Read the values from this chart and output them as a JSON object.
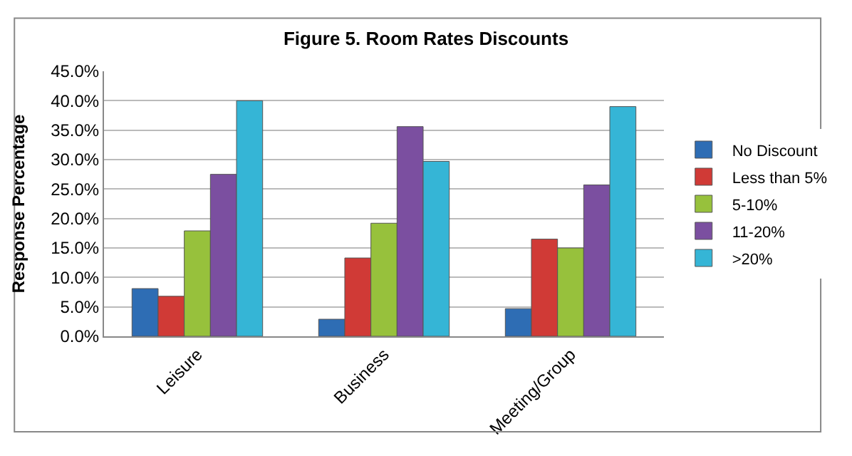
{
  "chart_data": {
    "type": "bar",
    "title": "Figure 5. Room Rates Discounts",
    "ylabel": "Response Percentage",
    "categories": [
      "Leisure",
      "Business",
      "Meeting/Group"
    ],
    "series": [
      {
        "name": "No Discount",
        "color": "#2e6db4",
        "values": [
          8.1,
          2.9,
          4.7
        ]
      },
      {
        "name": "Less than 5%",
        "color": "#d03a36",
        "values": [
          6.8,
          13.3,
          16.5
        ]
      },
      {
        "name": "5-10%",
        "color": "#97c13c",
        "values": [
          17.9,
          19.2,
          15.0
        ]
      },
      {
        "name": "11-20%",
        "color": "#7b4fa0",
        "values": [
          27.5,
          35.6,
          25.7
        ]
      },
      {
        "name": ">20%",
        "color": "#35b5d6",
        "values": [
          40.0,
          29.7,
          39.0
        ]
      }
    ],
    "ylim": [
      0,
      45
    ],
    "yticks": [
      {
        "value": 0,
        "label": "0.0%"
      },
      {
        "value": 5,
        "label": "5.0%"
      },
      {
        "value": 10,
        "label": "10.0%"
      },
      {
        "value": 15,
        "label": "15.0%"
      },
      {
        "value": 20,
        "label": "20.0%"
      },
      {
        "value": 25,
        "label": "25.0%"
      },
      {
        "value": 30,
        "label": "30.0%"
      },
      {
        "value": 35,
        "label": "35.0%"
      },
      {
        "value": 40,
        "label": "40.0%"
      },
      {
        "value": 45,
        "label": "45.0%"
      }
    ],
    "grid": "y",
    "legend": "right"
  }
}
